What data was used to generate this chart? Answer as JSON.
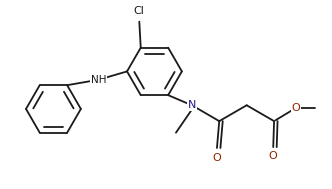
{
  "bg_color": "#ffffff",
  "line_color": "#1a1a1a",
  "N_color": "#1a1a8c",
  "O_color": "#8b2500",
  "lw": 1.3,
  "figsize": [
    3.32,
    1.89
  ],
  "dpi": 100,
  "xlim": [
    -0.5,
    10.5
  ],
  "ylim": [
    -1.0,
    5.5
  ]
}
